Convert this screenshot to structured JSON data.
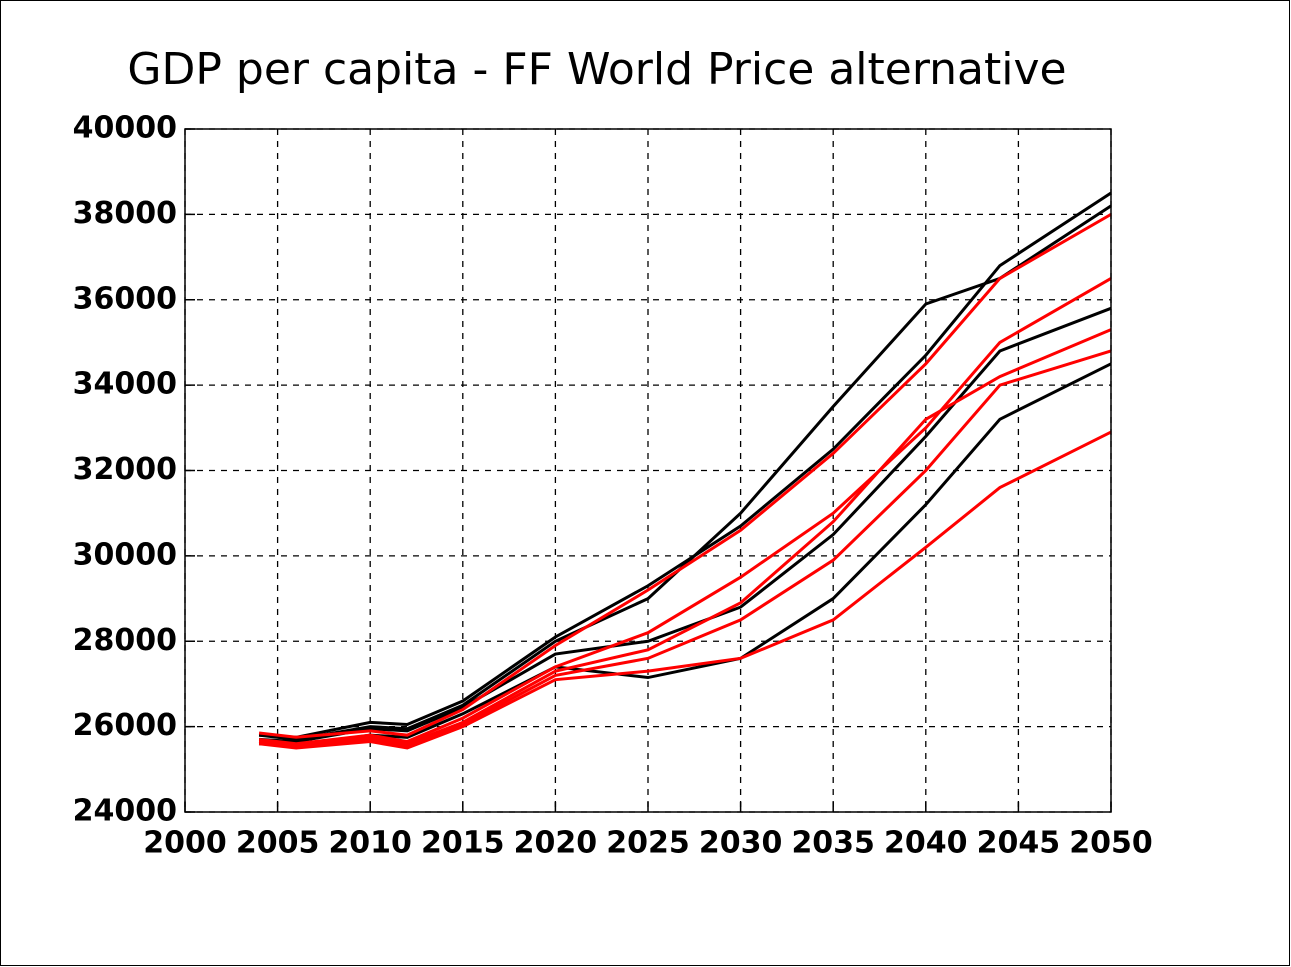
{
  "chart_data": {
    "type": "line",
    "title": "GDP per capita - FF World Price alternative",
    "x": [
      2004,
      2006,
      2010,
      2012,
      2015,
      2020,
      2025,
      2030,
      2035,
      2040,
      2044,
      2050
    ],
    "series": [
      {
        "color": "#000000",
        "values": [
          25800,
          25750,
          26100,
          26050,
          26600,
          28100,
          29300,
          30700,
          32500,
          34700,
          36800,
          38500
        ]
      },
      {
        "color": "#000000",
        "values": [
          25800,
          25700,
          26000,
          25950,
          26500,
          28000,
          29000,
          31000,
          33500,
          35900,
          36500,
          38200
        ]
      },
      {
        "color": "#000000",
        "values": [
          25700,
          25650,
          25950,
          25900,
          26450,
          27700,
          28000,
          28800,
          30500,
          32800,
          34800,
          35800
        ]
      },
      {
        "color": "#000000",
        "values": [
          25600,
          25550,
          25800,
          25750,
          26300,
          27400,
          27150,
          27600,
          29000,
          31200,
          33200,
          34500
        ]
      },
      {
        "color": "#ff0000",
        "values": [
          25850,
          25750,
          25900,
          25800,
          26400,
          27900,
          29200,
          30600,
          32400,
          34500,
          36500,
          38000
        ]
      },
      {
        "color": "#ff0000",
        "values": [
          25700,
          25600,
          25800,
          25650,
          26200,
          27400,
          28200,
          29500,
          31000,
          33000,
          35000,
          36500
        ]
      },
      {
        "color": "#ff0000",
        "values": [
          25650,
          25550,
          25750,
          25600,
          26100,
          27300,
          27800,
          28900,
          30800,
          33200,
          34200,
          35300
        ]
      },
      {
        "color": "#ff0000",
        "values": [
          25650,
          25550,
          25700,
          25550,
          26050,
          27200,
          27600,
          28500,
          29900,
          32000,
          34000,
          34800
        ]
      },
      {
        "color": "#ff0000",
        "values": [
          25600,
          25500,
          25650,
          25500,
          26000,
          27100,
          27300,
          27600,
          28500,
          30200,
          31600,
          32900
        ]
      }
    ],
    "xlim": [
      2000,
      2050
    ],
    "xticks": [
      2000,
      2005,
      2010,
      2015,
      2020,
      2025,
      2030,
      2035,
      2040,
      2045,
      2050
    ],
    "ylim": [
      24000,
      40000
    ],
    "yticks": [
      24000,
      26000,
      28000,
      30000,
      32000,
      34000,
      36000,
      38000,
      40000
    ],
    "grid": true
  }
}
